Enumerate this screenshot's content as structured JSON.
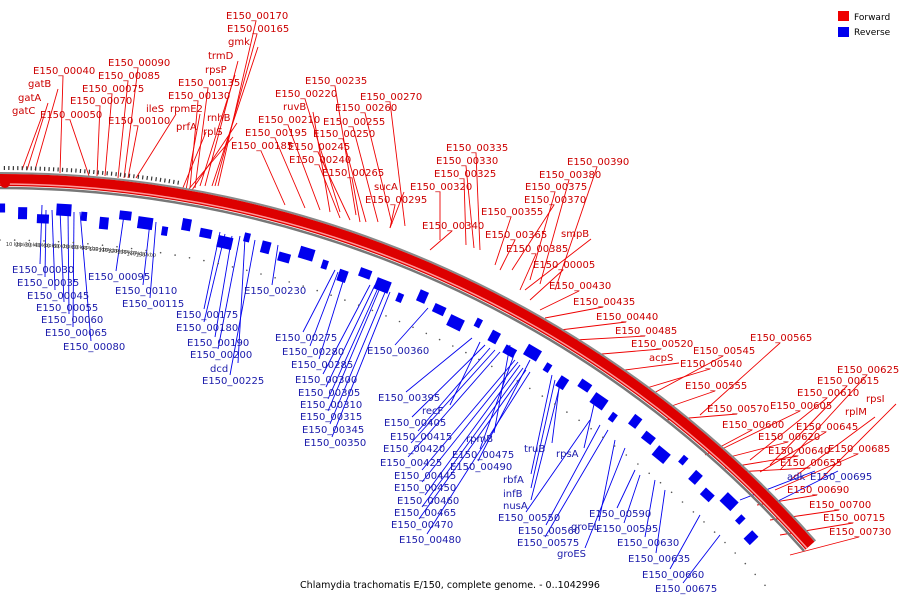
{
  "caption": "Chlamydia trachomatis E/150, complete genome. - 0..1042996",
  "legend": [
    {
      "label": "Forward",
      "color": "#ee0000"
    },
    {
      "label": "Reverse",
      "color": "#0000ee"
    }
  ],
  "colors": {
    "forward": "#ee0000",
    "reverse": "#0000ee",
    "forward_text": "#cc0000",
    "reverse_text": "#1a1aaa",
    "backbone": "#dd0000"
  },
  "scale_ticks": [
    "10 kbp",
    "20 kbp",
    "30 kbp",
    "40 kbp",
    "50 kbp",
    "60 kbp",
    "70 kbp",
    "80 kbp",
    "90 kbp",
    "100 kbp",
    "110 kbp",
    "120 kbp",
    "130 kbp",
    "140 kbp",
    "150 kbp"
  ],
  "forward_labels": [
    "E150_00170",
    "E150_00165",
    "gmk",
    "trmD",
    "rpsP",
    "E150_00135",
    "E150_00130",
    "rpmE2",
    "prfA",
    "rnhB",
    "rplS",
    "E150_00090",
    "E150_00085",
    "E150_00075",
    "E150_00070",
    "ileS",
    "E150_00100",
    "E150_00040",
    "gatB",
    "gatA",
    "gatC",
    "E150_00050",
    "E150_00235",
    "E150_00220",
    "ruvB",
    "E150_00210",
    "E150_00195",
    "E150_00185",
    "E150_00270",
    "E150_00260",
    "E150_00255",
    "E150_00250",
    "E150_00245",
    "E150_00240",
    "E150_00265",
    "sucA",
    "E150_00295",
    "E150_00335",
    "E150_00330",
    "E150_00325",
    "E150_00320",
    "E150_00340",
    "E150_00390",
    "E150_00380",
    "E150_00375",
    "E150_00370",
    "E150_00355",
    "E150_00365",
    "smpB",
    "E150_00385",
    "E150_00005",
    "E150_00430",
    "E150_00435",
    "E150_00440",
    "E150_00485",
    "E150_00520",
    "acpS",
    "E150_00545",
    "E150_00540",
    "E150_00565",
    "E150_00555",
    "E150_00625",
    "E150_00615",
    "E150_00610",
    "rpsI",
    "E150_00605",
    "rplM",
    "E150_00570",
    "E150_00600",
    "E150_00645",
    "E150_00620",
    "E150_00685",
    "E150_00640",
    "E150_00655",
    "E150_00690",
    "E150_00700",
    "E150_00715",
    "E150_00730"
  ],
  "reverse_labels": [
    "E150_00030",
    "E150_00035",
    "E150_00045",
    "E150_00055",
    "E150_00060",
    "E150_00065",
    "E150_00080",
    "E150_00095",
    "E150_00110",
    "E150_00115",
    "E150_00175",
    "E150_00180",
    "E150_00190",
    "E150_00200",
    "dcd",
    "E150_00225",
    "E150_00230",
    "E150_00275",
    "E150_00280",
    "E150_00285",
    "E150_00300",
    "E150_00305",
    "E150_00310",
    "E150_00315",
    "E150_00345",
    "E150_00350",
    "E150_00360",
    "E150_00395",
    "recF",
    "E150_00405",
    "E150_00415",
    "E150_00420",
    "E150_00425",
    "E150_00445",
    "E150_00450",
    "E150_00460",
    "E150_00465",
    "E150_00470",
    "E150_00480",
    "rpmB",
    "E150_00475",
    "E150_00490",
    "truB",
    "rbfA",
    "infB",
    "nusA",
    "rpsA",
    "E150_00550",
    "E150_00560",
    "groEL",
    "E150_00575",
    "groES",
    "E150_00590",
    "E150_00595",
    "E150_00630",
    "E150_00635",
    "E150_00660",
    "E150_00675",
    "adk",
    "E150_00695"
  ]
}
